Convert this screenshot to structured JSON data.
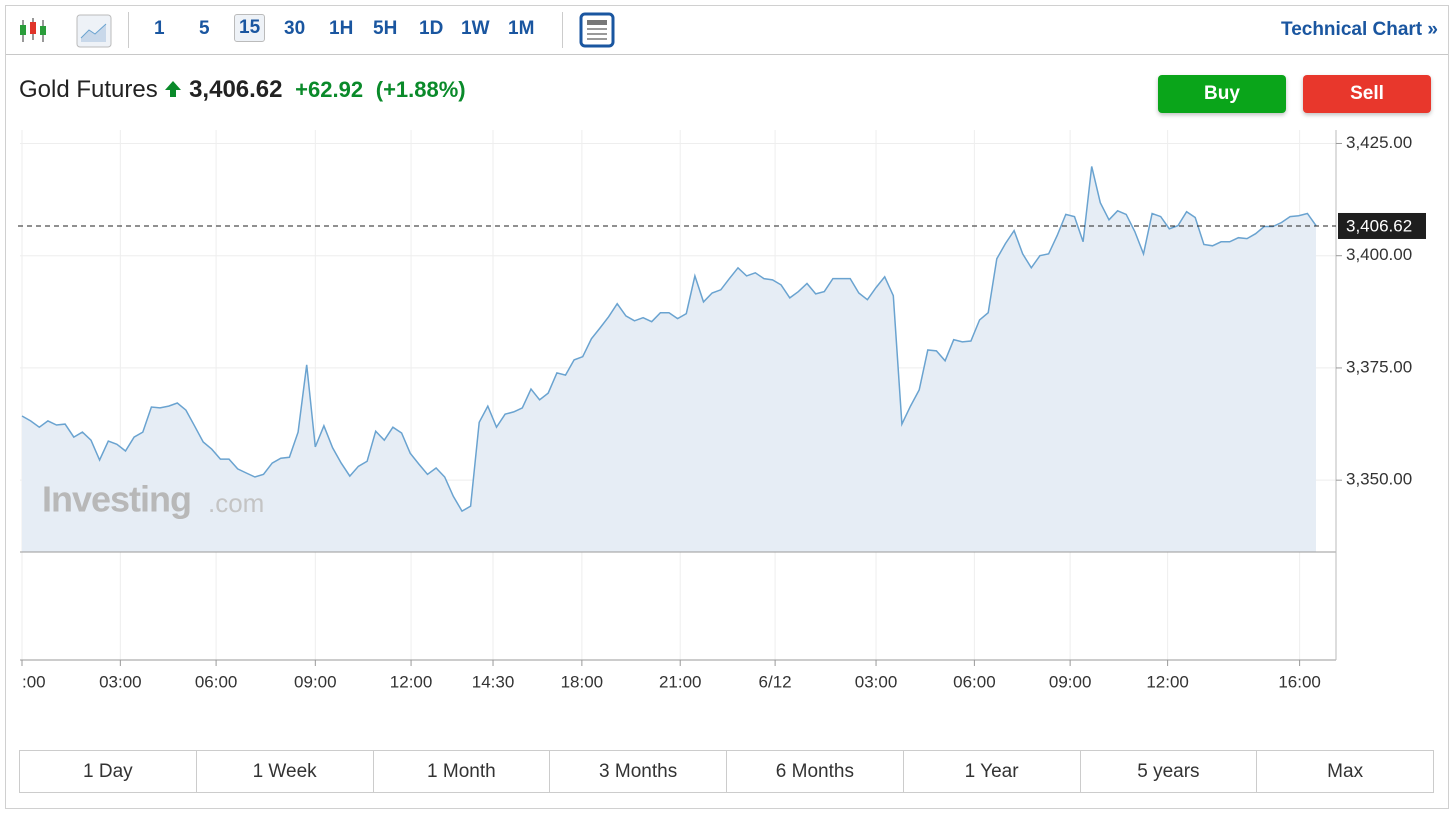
{
  "toolbar": {
    "intervals": [
      "1",
      "5",
      "15",
      "30",
      "1H",
      "5H",
      "1D",
      "1W",
      "1M"
    ],
    "active_interval": "15",
    "link": "Technical Chart",
    "link_arrow": "»"
  },
  "header": {
    "name": "Gold Futures",
    "change": "+62.92",
    "change_pct": "(+1.88%)",
    "buy": "Buy",
    "sell": "Sell"
  },
  "watermark": {
    "brand": "Investing",
    "suffix": ".com"
  },
  "ranges": [
    "1 Day",
    "1 Week",
    "1 Month",
    "3 Months",
    "6 Months",
    "1 Year",
    "5 years",
    "Max"
  ],
  "chart_data": {
    "type": "area",
    "color": "#6aa3d0",
    "fill": "#e6edf5",
    "grid": true,
    "last": {
      "value": 3406.62,
      "label": "3,406.62"
    },
    "values": [
      3364.3,
      3363.2,
      3361.8,
      3363.2,
      3362.3,
      3362.5,
      3359.6,
      3360.7,
      3358.9,
      3354.5,
      3358.7,
      3358.0,
      3356.5,
      3359.6,
      3360.7,
      3366.3,
      3366.1,
      3366.5,
      3367.2,
      3365.6,
      3362.1,
      3358.5,
      3356.9,
      3354.7,
      3354.7,
      3352.5,
      3351.6,
      3350.7,
      3351.3,
      3353.8,
      3354.9,
      3355.1,
      3360.7,
      3375.7,
      3357.4,
      3362.1,
      3357.2,
      3353.8,
      3350.9,
      3353.1,
      3354.2,
      3360.9,
      3358.9,
      3361.8,
      3360.5,
      3356.0,
      3353.6,
      3351.3,
      3352.7,
      3350.7,
      3346.4,
      3343.1,
      3344.2,
      3362.9,
      3366.5,
      3361.8,
      3364.7,
      3365.2,
      3366.1,
      3370.3,
      3367.9,
      3369.4,
      3373.9,
      3373.4,
      3376.8,
      3377.5,
      3381.5,
      3383.9,
      3386.4,
      3389.3,
      3386.6,
      3385.5,
      3386.2,
      3385.3,
      3387.3,
      3387.3,
      3386.0,
      3387.1,
      3395.5,
      3389.7,
      3391.7,
      3392.4,
      3394.9,
      3397.3,
      3395.5,
      3396.2,
      3394.9,
      3394.6,
      3393.5,
      3390.6,
      3392.0,
      3393.8,
      3391.5,
      3392.0,
      3394.9,
      3394.9,
      3394.9,
      3391.7,
      3390.2,
      3392.9,
      3395.3,
      3391.1,
      3362.5,
      3366.5,
      3370.1,
      3379.0,
      3378.8,
      3376.6,
      3381.3,
      3380.8,
      3381.0,
      3385.7,
      3387.3,
      3399.3,
      3402.7,
      3405.6,
      3400.4,
      3397.3,
      3400.0,
      3400.4,
      3404.5,
      3409.2,
      3408.7,
      3403.1,
      3419.9,
      3411.8,
      3408.0,
      3410.0,
      3409.2,
      3405.4,
      3400.4,
      3409.4,
      3408.7,
      3406.0,
      3406.7,
      3409.8,
      3408.5,
      3402.5,
      3402.2,
      3403.1,
      3403.1,
      3404.0,
      3403.8,
      3404.9,
      3406.5,
      3406.5,
      3407.4,
      3408.7,
      3408.9,
      3409.4,
      3406.7
    ],
    "xlim": [
      0,
      150
    ],
    "xticks": [
      {
        "value": 0,
        "label": ":00"
      },
      {
        "value": 11.4,
        "label": "03:00"
      },
      {
        "value": 22.5,
        "label": "06:00"
      },
      {
        "value": 34.0,
        "label": "09:00"
      },
      {
        "value": 45.1,
        "label": "12:00"
      },
      {
        "value": 54.6,
        "label": "14:30"
      },
      {
        "value": 64.9,
        "label": "18:00"
      },
      {
        "value": 76.3,
        "label": "21:00"
      },
      {
        "value": 87.3,
        "label": "6/12"
      },
      {
        "value": 99.0,
        "label": "03:00"
      },
      {
        "value": 110.4,
        "label": "06:00"
      },
      {
        "value": 121.5,
        "label": "09:00"
      },
      {
        "value": 132.8,
        "label": "12:00"
      },
      {
        "value": 148.1,
        "label": "16:00"
      }
    ],
    "ylim": [
      3334,
      3428
    ],
    "yticks": [
      {
        "value": 3350,
        "label": "3,350.00"
      },
      {
        "value": 3375,
        "label": "3,375.00"
      },
      {
        "value": 3400,
        "label": "3,400.00"
      },
      {
        "value": 3425,
        "label": "3,425.00"
      }
    ]
  }
}
